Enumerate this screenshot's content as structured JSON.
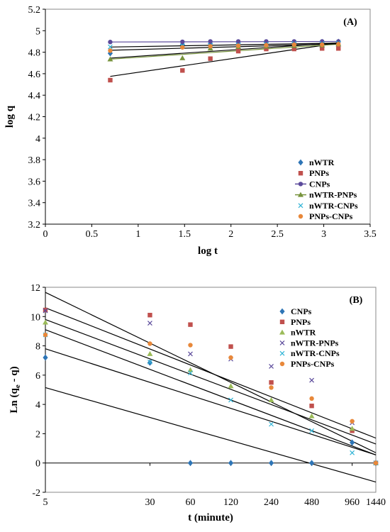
{
  "chart_data": [
    {
      "type": "scatter",
      "panel_label": "(A)",
      "xlabel": "log t",
      "ylabel": "log q",
      "xlim": [
        0,
        3.5
      ],
      "ylim": [
        3.2,
        5.2
      ],
      "xticks": [
        0,
        0.5,
        1,
        1.5,
        2,
        2.5,
        3,
        3.5
      ],
      "yticks": [
        3.2,
        3.4,
        3.6,
        3.8,
        4,
        4.2,
        4.4,
        4.6,
        4.8,
        5,
        5.2
      ],
      "xtick_labels": [
        "0",
        "0.5",
        "1",
        "1.5",
        "2",
        "2.5",
        "3",
        "3.5"
      ],
      "ytick_labels": [
        "3.2",
        "3.4",
        "3.6",
        "3.8",
        "4",
        "4.2",
        "4.4",
        "4.6",
        "4.8",
        "5",
        "5.2"
      ],
      "grid": false,
      "legend_position": "bottom-right",
      "x": [
        0.699,
        1.477,
        1.778,
        2.079,
        2.38,
        2.681,
        2.982,
        3.158
      ],
      "series": [
        {
          "name": "nWTR",
          "marker": "diamond",
          "color": "#2e75b6",
          "line_color": "#000000",
          "values": [
            4.79,
            4.87,
            4.88,
            4.885,
            4.89,
            4.893,
            4.895,
            4.897
          ],
          "fit": [
            4.745,
            4.888
          ]
        },
        {
          "name": "PNPs",
          "marker": "square",
          "color": "#c0504d",
          "line_color": "#000000",
          "values": [
            4.54,
            4.63,
            4.74,
            4.81,
            4.83,
            4.83,
            4.835,
            4.835
          ],
          "fit": [
            4.575,
            4.885
          ]
        },
        {
          "name": "CNPs",
          "marker": "circle-line",
          "color": "#5b4a9b",
          "line_color": "#5b4a9b",
          "values": [
            4.895,
            4.897,
            4.9,
            4.9,
            4.9,
            4.9,
            4.9,
            4.9
          ],
          "fit": [
            4.895,
            4.9
          ]
        },
        {
          "name": "nWTR-PNPs",
          "marker": "triangle-line",
          "color": "#77933c",
          "line_color": "#77933c",
          "values": [
            4.735,
            4.745,
            4.835,
            4.85,
            4.855,
            4.86,
            4.865,
            4.875
          ],
          "fit": [
            4.735,
            4.875
          ]
        },
        {
          "name": "nWTR-CNPs",
          "marker": "x",
          "color": "#31b4d6",
          "line_color": "#000000",
          "values": [
            4.85,
            4.86,
            4.865,
            4.87,
            4.875,
            4.88,
            4.88,
            4.885
          ],
          "fit": [
            4.848,
            4.885
          ]
        },
        {
          "name": "PNPs-CNPs",
          "marker": "circle",
          "color": "#e8883a",
          "line_color": "#000000",
          "values": [
            4.815,
            4.845,
            4.855,
            4.86,
            4.865,
            4.87,
            4.87,
            4.875
          ],
          "fit": [
            4.818,
            4.878
          ]
        }
      ]
    },
    {
      "type": "scatter",
      "panel_label": "(B)",
      "xlabel": "t (minute)",
      "ylabel_main": "Ln (q",
      "ylabel_sub": "e",
      "ylabel_end": " - q)",
      "xlim": [
        5,
        1440
      ],
      "ylim": [
        -2,
        12
      ],
      "x_axis_type": "log",
      "xticks": [
        5,
        30,
        60,
        120,
        240,
        480,
        960,
        1440
      ],
      "yticks": [
        -2,
        0,
        2,
        4,
        6,
        8,
        10,
        12
      ],
      "xtick_labels": [
        "5",
        "30",
        "60",
        "120",
        "240",
        "480",
        "960",
        "1440"
      ],
      "ytick_labels": [
        "-2",
        "0",
        "2",
        "4",
        "6",
        "8",
        "10",
        "12"
      ],
      "grid": false,
      "legend_position": "top-right",
      "x": [
        5,
        30,
        60,
        120,
        240,
        480,
        960,
        1440
      ],
      "series": [
        {
          "name": "CNPs",
          "marker": "diamond",
          "color": "#2e75b6",
          "values": [
            7.2,
            6.85,
            0,
            0,
            0,
            0,
            1.4,
            0
          ],
          "fit": [
            5.15,
            -1.3
          ]
        },
        {
          "name": "PNPs",
          "marker": "square",
          "color": "#c0504d",
          "values": [
            10.45,
            10.1,
            9.45,
            7.95,
            5.5,
            3.9,
            2.2,
            0
          ],
          "fit": [
            11.65,
            0.7
          ]
        },
        {
          "name": "nWTR",
          "marker": "triangle",
          "color": "#9bbb59",
          "values": [
            9.6,
            7.45,
            6.35,
            5.25,
            4.3,
            3.2,
            2.35,
            0
          ],
          "fit": [
            9.1,
            0.55
          ]
        },
        {
          "name": "nWTR-PNPs",
          "marker": "x",
          "color": "#5b4a9b",
          "values": [
            10.4,
            9.55,
            7.45,
            7.1,
            6.6,
            5.65,
            2.75,
            0
          ],
          "fit": [
            10.6,
            1.7
          ]
        },
        {
          "name": "nWTR-CNPs",
          "marker": "x",
          "color": "#31b4d6",
          "values": [
            8.75,
            6.9,
            6.15,
            4.3,
            2.65,
            2.2,
            0.7,
            0
          ],
          "fit": [
            7.8,
            0.55
          ]
        },
        {
          "name": "PNPs-CNPs",
          "marker": "circle",
          "color": "#e8883a",
          "values": [
            8.75,
            8.15,
            8.05,
            7.2,
            5.15,
            4.4,
            2.85,
            0
          ],
          "fit": [
            9.8,
            1.3
          ]
        }
      ]
    }
  ]
}
